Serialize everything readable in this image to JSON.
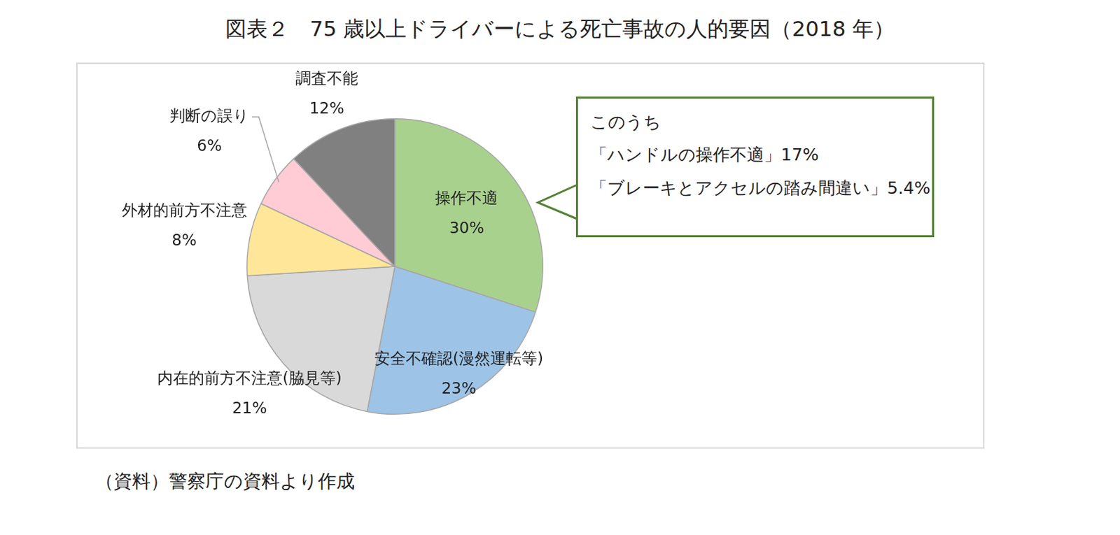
{
  "chart_data": {
    "type": "pie",
    "title": "図表２　75 歳以上ドライバーによる死亡事故の人的要因（2018 年）",
    "categories": [
      "操作不適",
      "安全不確認(漫然運転等)",
      "内在的前方不注意(脇見等)",
      "外材的前方不注意",
      "判断の誤り",
      "調査不能"
    ],
    "values": [
      30,
      23,
      21,
      8,
      6,
      12
    ],
    "value_labels": [
      "30%",
      "23%",
      "21%",
      "8%",
      "6%",
      "12%"
    ],
    "colors": [
      "#a9d18e",
      "#9dc3e6",
      "#d9d9d9",
      "#ffe699",
      "#ffccd5",
      "#808080"
    ],
    "data_labels": true,
    "annotation": [
      "このうち",
      "「ハンドルの操作不適」17%",
      "「ブレーキとアクセルの踏み間違い」5.4%"
    ],
    "source": "（資料）警察庁の資料より作成"
  }
}
